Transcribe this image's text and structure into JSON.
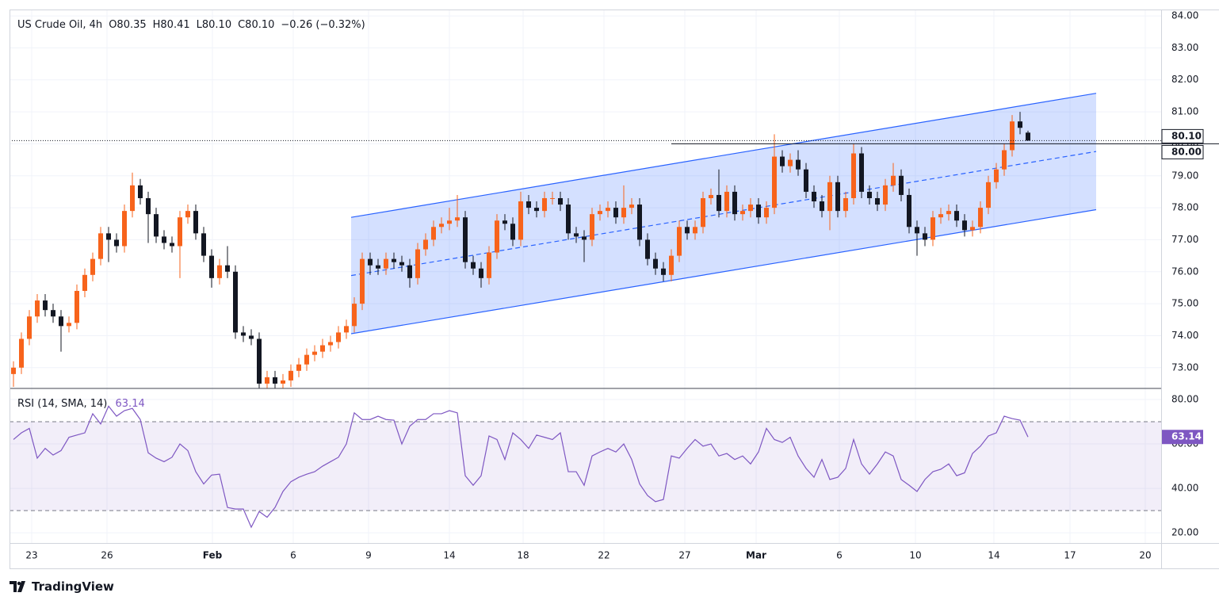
{
  "chart_data": [
    {
      "type": "candlestick",
      "title": "US Crude Oil, 4h",
      "ohlc_header": [
        "O80.35",
        "H80.41",
        "L80.10",
        "C80.10"
      ],
      "change": "−0.26 (−0.32%)",
      "up_color": "#f7631b",
      "down_color": "#131722",
      "open": [
        72.8,
        73.0,
        73.9,
        74.6,
        75.1,
        74.8,
        74.6,
        74.3,
        74.4,
        75.4,
        75.9,
        76.4,
        77.2,
        77.0,
        76.8,
        77.9,
        78.7,
        78.3,
        77.8,
        77.1,
        76.9,
        76.8,
        77.7,
        77.9,
        77.2,
        76.5,
        75.8,
        76.2,
        76.0,
        74.1,
        74.0,
        73.9,
        72.5,
        72.7,
        72.5,
        72.6,
        72.9,
        73.1,
        73.4,
        73.5,
        73.7,
        73.8,
        74.1,
        74.3,
        75.0,
        76.4,
        76.2,
        76.1,
        76.4,
        76.3,
        76.2,
        75.8,
        76.7,
        77.0,
        77.4,
        77.5,
        77.6,
        77.7,
        76.3,
        76.1,
        75.8,
        76.6,
        77.6,
        77.5,
        77.0,
        78.2,
        78.0,
        77.9,
        78.3,
        78.3,
        78.1,
        77.2,
        77.1,
        77.0,
        77.8,
        77.9,
        78.0,
        77.7,
        78.0,
        78.1,
        77.0,
        76.4,
        76.1,
        75.9,
        76.5,
        77.4,
        77.2,
        77.4,
        78.3,
        78.4,
        77.9,
        78.5,
        77.8,
        77.9,
        78.1,
        77.7,
        78.0,
        79.6,
        79.3,
        79.5,
        79.2,
        78.5,
        78.2,
        77.9,
        78.8,
        77.9,
        78.3,
        79.7,
        78.5,
        78.3,
        78.1,
        78.7,
        79.0,
        78.4,
        77.4,
        77.2,
        77.0,
        77.7,
        77.8,
        77.9,
        77.6,
        77.3,
        77.4,
        78.0,
        78.8,
        79.2,
        79.8,
        80.7,
        80.35
      ],
      "high": [
        73.2,
        74.1,
        74.8,
        75.3,
        75.3,
        75.0,
        74.8,
        74.6,
        75.6,
        76.1,
        76.6,
        77.4,
        77.4,
        77.2,
        78.1,
        79.1,
        78.9,
        78.5,
        78.0,
        77.3,
        77.1,
        77.9,
        78.1,
        78.1,
        77.4,
        76.7,
        76.4,
        76.8,
        76.2,
        74.3,
        74.2,
        74.1,
        72.9,
        72.9,
        72.8,
        73.1,
        73.3,
        73.6,
        73.7,
        73.9,
        74.0,
        74.3,
        74.5,
        75.2,
        76.6,
        76.6,
        76.4,
        76.6,
        76.6,
        76.5,
        76.4,
        76.9,
        77.2,
        77.6,
        77.7,
        78.0,
        78.4,
        77.9,
        76.5,
        76.3,
        76.8,
        77.8,
        77.8,
        77.7,
        78.5,
        78.4,
        78.2,
        78.5,
        78.5,
        78.5,
        78.3,
        77.4,
        77.3,
        78.0,
        78.1,
        78.2,
        78.2,
        78.7,
        78.3,
        78.3,
        77.2,
        76.6,
        76.3,
        76.7,
        77.6,
        77.6,
        77.6,
        78.5,
        78.6,
        79.2,
        78.7,
        78.7,
        78.1,
        78.3,
        78.3,
        78.2,
        80.3,
        79.8,
        79.7,
        79.8,
        79.4,
        78.7,
        78.4,
        79.0,
        79.0,
        78.5,
        80.0,
        79.9,
        78.7,
        78.5,
        78.9,
        79.4,
        79.2,
        78.6,
        77.6,
        77.4,
        77.9,
        78.0,
        78.1,
        78.1,
        77.8,
        77.6,
        78.2,
        79.0,
        79.4,
        80.0,
        80.9,
        81.0,
        80.41
      ],
      "low": [
        72.4,
        72.8,
        73.7,
        74.4,
        74.6,
        74.4,
        73.5,
        74.1,
        74.2,
        75.2,
        75.7,
        76.2,
        76.3,
        76.6,
        76.6,
        77.7,
        78.1,
        76.9,
        76.9,
        76.7,
        76.6,
        75.8,
        77.5,
        77.0,
        76.3,
        75.5,
        75.6,
        75.8,
        73.9,
        73.8,
        73.7,
        72.3,
        72.3,
        72.3,
        72.3,
        72.4,
        72.7,
        72.9,
        73.2,
        73.3,
        73.5,
        73.6,
        73.9,
        74.1,
        74.8,
        75.9,
        75.9,
        75.9,
        76.1,
        76.0,
        75.5,
        75.6,
        76.5,
        76.8,
        77.2,
        77.3,
        77.4,
        76.1,
        75.9,
        75.5,
        75.6,
        76.4,
        77.3,
        76.8,
        76.8,
        77.8,
        77.7,
        77.7,
        78.1,
        77.9,
        77.0,
        76.9,
        76.3,
        76.8,
        77.6,
        77.7,
        77.5,
        77.5,
        77.8,
        76.8,
        76.2,
        75.9,
        75.7,
        75.7,
        76.3,
        77.0,
        77.0,
        77.2,
        78.1,
        77.7,
        77.7,
        77.6,
        77.6,
        77.7,
        77.5,
        77.5,
        77.8,
        79.1,
        79.1,
        79.0,
        78.3,
        78.0,
        77.7,
        77.3,
        77.7,
        77.7,
        78.1,
        78.3,
        78.1,
        77.9,
        77.9,
        78.5,
        78.2,
        77.2,
        76.5,
        76.8,
        76.8,
        77.5,
        77.6,
        77.4,
        77.1,
        77.1,
        77.2,
        77.8,
        78.6,
        79.0,
        79.6,
        80.3,
        80.1
      ],
      "close": [
        73.0,
        73.9,
        74.6,
        75.1,
        74.8,
        74.6,
        74.3,
        74.4,
        75.4,
        75.9,
        76.4,
        77.2,
        77.0,
        76.8,
        77.9,
        78.7,
        78.3,
        77.8,
        77.1,
        76.9,
        76.8,
        77.7,
        77.9,
        77.2,
        76.5,
        75.8,
        76.2,
        76.0,
        74.1,
        74.0,
        73.9,
        72.5,
        72.7,
        72.5,
        72.6,
        72.9,
        73.1,
        73.4,
        73.5,
        73.7,
        73.8,
        74.1,
        74.3,
        75.0,
        76.4,
        76.2,
        76.1,
        76.4,
        76.3,
        76.2,
        75.8,
        76.7,
        77.0,
        77.4,
        77.5,
        77.6,
        77.7,
        76.3,
        76.1,
        75.8,
        76.6,
        77.6,
        77.5,
        77.0,
        78.2,
        78.0,
        77.9,
        78.3,
        78.3,
        78.1,
        77.2,
        77.1,
        77.0,
        77.8,
        77.9,
        78.0,
        77.7,
        78.0,
        78.1,
        77.0,
        76.4,
        76.1,
        75.9,
        76.5,
        77.4,
        77.2,
        77.4,
        78.3,
        78.4,
        77.9,
        78.5,
        77.8,
        77.9,
        78.1,
        77.7,
        78.0,
        79.6,
        79.3,
        79.5,
        79.2,
        78.5,
        78.2,
        77.9,
        78.8,
        77.9,
        78.3,
        79.7,
        78.5,
        78.3,
        78.1,
        78.7,
        79.0,
        78.4,
        77.4,
        77.2,
        77.0,
        77.7,
        77.8,
        77.9,
        77.6,
        77.3,
        77.4,
        78.0,
        78.8,
        79.2,
        79.8,
        80.7,
        80.5,
        80.1
      ],
      "channel": {
        "x": [
          42.6,
          136.6
        ],
        "upper": [
          77.7,
          81.58
        ],
        "lower": [
          74.06,
          77.94
        ],
        "color": "#2962ff"
      },
      "level": {
        "x": 83,
        "value": 80.0,
        "label": "80.00"
      },
      "last_price": {
        "value": 80.1,
        "label": "80.10"
      },
      "xlim": [
        -0.5,
        144.8
      ],
      "xticks": [
        {
          "value": 2.3,
          "label": "23"
        },
        {
          "value": 11.8,
          "label": "26"
        },
        {
          "value": 25.1,
          "label": "Feb"
        },
        {
          "value": 35.3,
          "label": "6"
        },
        {
          "value": 44.8,
          "label": "9"
        },
        {
          "value": 55,
          "label": "14"
        },
        {
          "value": 64.3,
          "label": "18"
        },
        {
          "value": 74.5,
          "label": "22"
        },
        {
          "value": 84.7,
          "label": "27"
        },
        {
          "value": 93.7,
          "label": "Mar"
        },
        {
          "value": 104.2,
          "label": "6"
        },
        {
          "value": 113.8,
          "label": "10"
        },
        {
          "value": 123.7,
          "label": "14"
        },
        {
          "value": 133.3,
          "label": "17"
        },
        {
          "value": 142.8,
          "label": "20"
        }
      ],
      "ylim": [
        72.35,
        84.2
      ],
      "yticks": [
        {
          "value": 73,
          "label": "73.00"
        },
        {
          "value": 74,
          "label": "74.00"
        },
        {
          "value": 75,
          "label": "75.00"
        },
        {
          "value": 76,
          "label": "76.00"
        },
        {
          "value": 77,
          "label": "77.00"
        },
        {
          "value": 78,
          "label": "78.00"
        },
        {
          "value": 79,
          "label": "79.00"
        },
        {
          "value": 80,
          "label": "80.00"
        },
        {
          "value": 81,
          "label": "81.00"
        },
        {
          "value": 82,
          "label": "82.00"
        },
        {
          "value": 83,
          "label": "83.00"
        },
        {
          "value": 84,
          "label": "84.00"
        }
      ],
      "grid": true
    },
    {
      "type": "line",
      "title": "RSI (14, SMA, 14)",
      "color": "#7e57c2",
      "values": [
        62,
        65,
        67,
        53.6,
        58,
        55,
        57,
        63,
        64,
        65,
        73.6,
        69,
        77,
        72.5,
        75,
        76,
        71,
        56,
        53.6,
        52,
        54,
        60,
        57,
        47.5,
        42,
        46,
        46.4,
        31.4,
        30.7,
        30.7,
        22.5,
        29.6,
        27,
        31.4,
        38.6,
        43,
        45,
        46.4,
        47.5,
        50,
        52,
        54,
        60,
        74,
        71,
        71,
        72.5,
        71,
        70.7,
        60,
        68,
        71,
        71,
        73.6,
        73.6,
        75,
        74,
        45.7,
        41.4,
        45.7,
        63.6,
        62,
        53,
        65,
        62,
        58,
        64,
        63,
        62,
        65,
        47.5,
        47.5,
        41.4,
        54.6,
        56.4,
        58,
        56.4,
        60,
        53,
        42,
        36.8,
        34,
        35,
        54.6,
        53.6,
        58,
        62,
        59,
        60,
        54.6,
        55.7,
        53,
        54.6,
        51,
        56.4,
        67,
        62,
        60.7,
        63,
        54.6,
        49,
        45,
        53,
        44,
        45,
        49,
        62,
        51,
        46.4,
        51,
        56.4,
        54.6,
        44,
        41.4,
        38.6,
        44,
        47.5,
        48.6,
        51,
        45.7,
        47,
        55.7,
        59,
        63.6,
        65,
        72.5,
        71.4,
        70.7,
        63.14
      ],
      "bands": [
        30,
        70
      ],
      "ylim": [
        15.4,
        85
      ],
      "yticks": [
        {
          "value": 20,
          "label": "20.00"
        },
        {
          "value": 40,
          "label": "40.00"
        },
        {
          "value": 60,
          "label": "60.00"
        },
        {
          "value": 80,
          "label": "80.00"
        }
      ]
    }
  ],
  "footer": "TradingView"
}
